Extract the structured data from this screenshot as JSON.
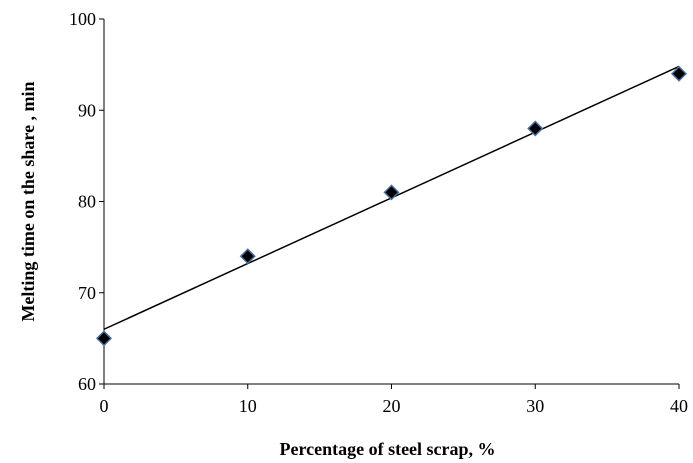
{
  "chart_data": {
    "type": "scatter",
    "title": "",
    "xlabel": "Percentage of steel scrap, %",
    "ylabel": "Melting time on the share , min",
    "xlim": [
      0,
      40
    ],
    "ylim": [
      60,
      100
    ],
    "x_ticks": [
      "0",
      "10",
      "20",
      "30",
      "40"
    ],
    "y_ticks": [
      "60",
      "70",
      "80",
      "90",
      "100"
    ],
    "grid": false,
    "legend": "none",
    "series": [
      {
        "x": [
          0,
          10,
          20,
          30,
          40
        ],
        "y": [
          65,
          74,
          81,
          88,
          94
        ],
        "marker": "diamond",
        "marker_fill": "#000000",
        "marker_edge": "#4a6fa5"
      }
    ],
    "trendline": {
      "type": "linear",
      "x": [
        0,
        40
      ],
      "y": [
        66,
        94.8
      ],
      "color": "#000000"
    }
  }
}
